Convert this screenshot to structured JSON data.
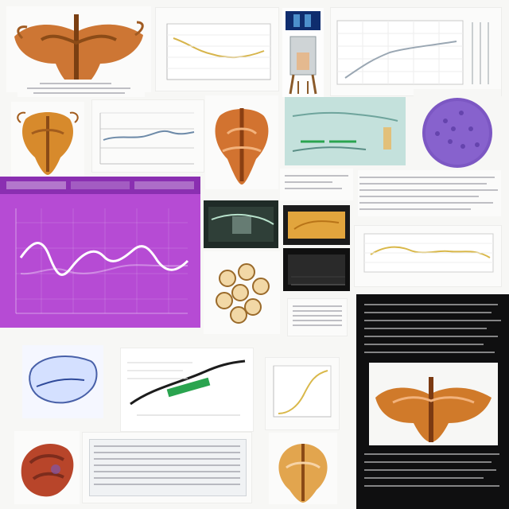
{
  "colors": {
    "page_background": "#f7f7f5",
    "magenta_panel": "#b64bd4",
    "magenta_header": "#8a2fb1",
    "dark_panel": "#0f0f10",
    "tissue_orange": "#d07a2a",
    "tissue_brown": "#8a4a16",
    "cell_purple": "#7c57c3",
    "chart_line_yellow": "#d9b84a",
    "chart_line_white": "#ffffff",
    "green_stripe": "#2aa44f"
  },
  "icons": {
    "anatomy": "anatomy-illustration",
    "microscopy": "micrograph-image",
    "chart": "chart-thumbnail",
    "device": "device-photo",
    "text": "text-block"
  }
}
